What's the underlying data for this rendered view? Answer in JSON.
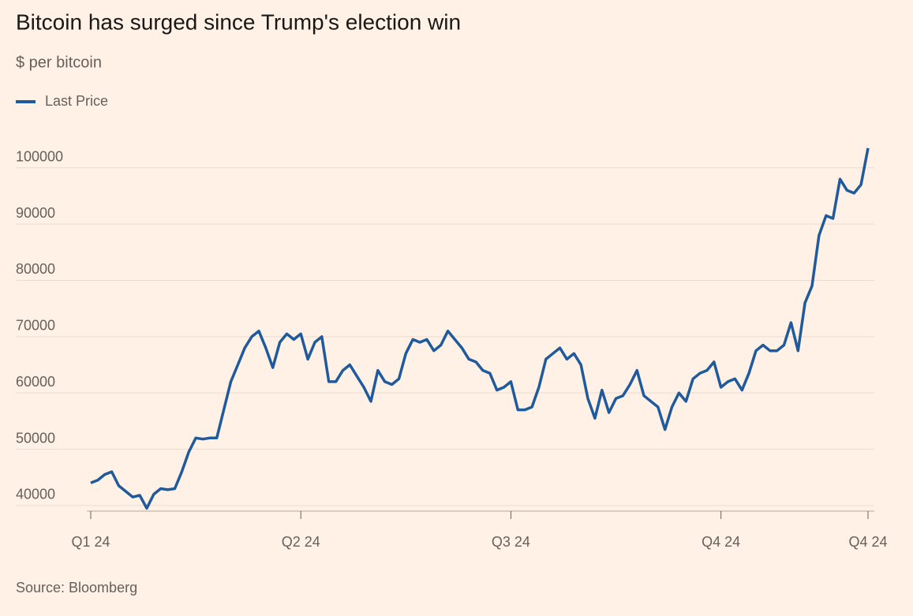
{
  "chart_data": {
    "type": "line",
    "title": "Bitcoin has surged since Trump's election win",
    "subtitle": "$ per bitcoin",
    "source": "Source: Bloomberg",
    "categories": [
      "Q1 24",
      null,
      null,
      null,
      null,
      null,
      null,
      null,
      null,
      null,
      null,
      null,
      null,
      null,
      null,
      null,
      null,
      null,
      null,
      null,
      null,
      null,
      null,
      null,
      null,
      null,
      null,
      null,
      null,
      null,
      "Q2 24",
      null,
      null,
      null,
      null,
      null,
      null,
      null,
      null,
      null,
      null,
      null,
      null,
      null,
      null,
      null,
      null,
      null,
      null,
      null,
      null,
      null,
      null,
      null,
      null,
      null,
      null,
      null,
      null,
      null,
      "Q3 24",
      null,
      null,
      null,
      null,
      null,
      null,
      null,
      null,
      null,
      null,
      null,
      null,
      null,
      null,
      null,
      null,
      null,
      null,
      null,
      null,
      null,
      null,
      null,
      null,
      null,
      null,
      null,
      null,
      null,
      "Q4 24",
      null,
      null,
      null,
      null,
      null,
      null,
      null,
      null,
      null,
      null,
      null,
      null,
      null,
      null,
      null,
      null,
      null,
      null,
      null,
      null,
      "Q4 24"
    ],
    "series": [
      {
        "name": "Last Price",
        "color": "#1f5a9c",
        "values": [
          44000,
          44500,
          45500,
          46000,
          43500,
          42500,
          41500,
          41800,
          39500,
          42000,
          43000,
          42800,
          43000,
          46000,
          49500,
          52000,
          51800,
          52000,
          52000,
          57000,
          62000,
          65000,
          68000,
          70000,
          71000,
          68000,
          64500,
          69000,
          70500,
          69500,
          70500,
          66000,
          69000,
          70000,
          62000,
          62000,
          64000,
          65000,
          63000,
          61000,
          58500,
          64000,
          62000,
          61500,
          62500,
          67000,
          69500,
          69000,
          69500,
          67500,
          68500,
          71000,
          69500,
          68000,
          66000,
          65500,
          64000,
          63500,
          60500,
          61000,
          62000,
          57000,
          57000,
          57500,
          61000,
          66000,
          67000,
          68000,
          66000,
          67000,
          65000,
          59000,
          55500,
          60500,
          56500,
          59000,
          59500,
          61500,
          64000,
          59500,
          58500,
          57500,
          53500,
          57500,
          60000,
          58500,
          62500,
          63500,
          64000,
          65500,
          61000,
          62000,
          62500,
          60500,
          63500,
          67500,
          68500,
          67500,
          67500,
          68500,
          72500,
          67500,
          76000,
          79000,
          88000,
          91500,
          91000,
          98000,
          96000,
          95500,
          97000,
          103500
        ]
      }
    ],
    "ylim": [
      39000,
      106000
    ],
    "yticks": [
      40000,
      50000,
      60000,
      70000,
      80000,
      90000,
      100000
    ],
    "grid": true,
    "legend": "top-left"
  }
}
